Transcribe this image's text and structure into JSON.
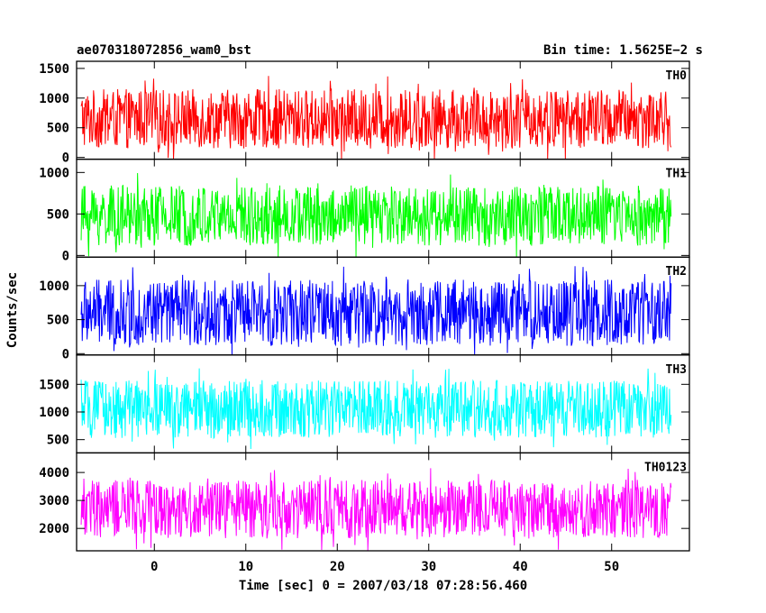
{
  "header": {
    "title": "ae070318072856_wam0_bst",
    "bin_time": "Bin time: 1.5625E−2 s"
  },
  "chart_data": {
    "type": "line",
    "xlabel": "Time [sec] 0 = 2007/03/18 07:28:56.460",
    "ylabel": "Counts/sec",
    "xlim": [
      -8.5,
      58.5
    ],
    "x_ticks": [
      0,
      10,
      20,
      30,
      40,
      50
    ],
    "x_tick_labels": [
      "0",
      "10",
      "20",
      "30",
      "40",
      "50"
    ],
    "data_x_range": [
      -8,
      56.5
    ],
    "bin_time_s": 0.015625,
    "panels": [
      {
        "name": "TH0",
        "color": "#ff0000",
        "ylim": [
          -30,
          1620
        ],
        "y_ticks": [
          0,
          500,
          1000,
          1500
        ],
        "y_tick_labels": [
          "0",
          "500",
          "1000",
          "1500"
        ],
        "typical_band": [
          150,
          1150
        ],
        "mean": 650
      },
      {
        "name": "TH1",
        "color": "#00ff00",
        "ylim": [
          -20,
          1160
        ],
        "y_ticks": [
          0,
          500,
          1000
        ],
        "y_tick_labels": [
          "0",
          "500",
          "1000"
        ],
        "typical_band": [
          120,
          850
        ],
        "mean": 480
      },
      {
        "name": "TH2",
        "color": "#0000ff",
        "ylim": [
          -20,
          1420
        ],
        "y_ticks": [
          0,
          500,
          1000
        ],
        "y_tick_labels": [
          "0",
          "500",
          "1000"
        ],
        "typical_band": [
          120,
          1100
        ],
        "mean": 600
      },
      {
        "name": "TH3",
        "color": "#00ffff",
        "ylim": [
          260,
          2030
        ],
        "y_ticks": [
          500,
          1000,
          1500
        ],
        "y_tick_labels": [
          "500",
          "1000",
          "1500"
        ],
        "typical_band": [
          550,
          1600
        ],
        "mean": 1050
      },
      {
        "name": "TH0123",
        "color": "#ff00ff",
        "ylim": [
          1200,
          4700
        ],
        "y_ticks": [
          2000,
          3000,
          4000
        ],
        "y_tick_labels": [
          "2000",
          "3000",
          "4000"
        ],
        "typical_band": [
          1700,
          3800
        ],
        "mean": 2700
      }
    ]
  }
}
